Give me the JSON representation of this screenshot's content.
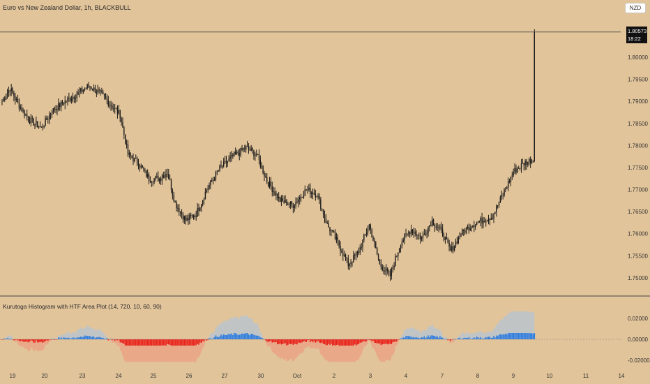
{
  "header": {
    "title": "Euro vs New Zealand Dollar, 1h, BLACKBULL",
    "currency_button": "NZD"
  },
  "price_badge": {
    "price": "1.80573",
    "countdown": "18:22"
  },
  "indicator": {
    "title": "Kurutoga Histogram with HTF Area Plot (14, 720, 10, 60, 90)"
  },
  "colors": {
    "background": "#e2c49a",
    "candle": "#1a1a1a",
    "hist_positive": "#2f7ee0",
    "hist_negative": "#e8231c",
    "area_positive": "#b8c4cf",
    "area_negative": "#eba384",
    "gridline": "#4a4a4a",
    "zero_line": "#7a7a7a"
  },
  "chart_data": {
    "type": "line",
    "series_style": "candlestick",
    "price_axis": {
      "ticks": [
        "1.80000",
        "1.79500",
        "1.79000",
        "1.78500",
        "1.78000",
        "1.77500",
        "1.77000",
        "1.76500",
        "1.76000",
        "1.75500",
        "1.75000"
      ],
      "range": [
        1.7465,
        1.8095
      ],
      "current_price": 1.80573
    },
    "x_axis": {
      "ticks": [
        "19",
        "20",
        "23",
        "24",
        "25",
        "26",
        "27",
        "30",
        "Oct",
        "2",
        "3",
        "4",
        "7",
        "8",
        "9",
        "10",
        "11",
        "14"
      ],
      "bars_total": 410
    },
    "price_path": [
      [
        0,
        1.79
      ],
      [
        6,
        1.793
      ],
      [
        12,
        1.7895
      ],
      [
        20,
        1.786
      ],
      [
        30,
        1.784
      ],
      [
        38,
        1.7878
      ],
      [
        48,
        1.79
      ],
      [
        58,
        1.7918
      ],
      [
        66,
        1.7935
      ],
      [
        74,
        1.792
      ],
      [
        82,
        1.7895
      ],
      [
        90,
        1.787
      ],
      [
        96,
        1.778
      ],
      [
        104,
        1.776
      ],
      [
        112,
        1.7725
      ],
      [
        120,
        1.7725
      ],
      [
        126,
        1.774
      ],
      [
        132,
        1.767
      ],
      [
        140,
        1.763
      ],
      [
        148,
        1.7645
      ],
      [
        156,
        1.77
      ],
      [
        166,
        1.7748
      ],
      [
        176,
        1.7775
      ],
      [
        186,
        1.7795
      ],
      [
        194,
        1.778
      ],
      [
        202,
        1.772
      ],
      [
        212,
        1.7675
      ],
      [
        222,
        1.7665
      ],
      [
        232,
        1.77
      ],
      [
        240,
        1.769
      ],
      [
        248,
        1.762
      ],
      [
        256,
        1.758
      ],
      [
        264,
        1.753
      ],
      [
        272,
        1.756
      ],
      [
        280,
        1.762
      ],
      [
        288,
        1.753
      ],
      [
        296,
        1.7505
      ],
      [
        304,
        1.758
      ],
      [
        312,
        1.761
      ],
      [
        320,
        1.759
      ],
      [
        328,
        1.763
      ],
      [
        336,
        1.76
      ],
      [
        342,
        1.756
      ],
      [
        350,
        1.76
      ],
      [
        358,
        1.762
      ],
      [
        366,
        1.763
      ],
      [
        374,
        1.764
      ],
      [
        382,
        1.769
      ],
      [
        390,
        1.774
      ],
      [
        398,
        1.776
      ],
      [
        406,
        1.777
      ]
    ],
    "histogram": {
      "range": [
        -0.024,
        0.028
      ],
      "ticks": [
        "0.02000",
        "0.00000",
        "-0.02000"
      ]
    }
  }
}
